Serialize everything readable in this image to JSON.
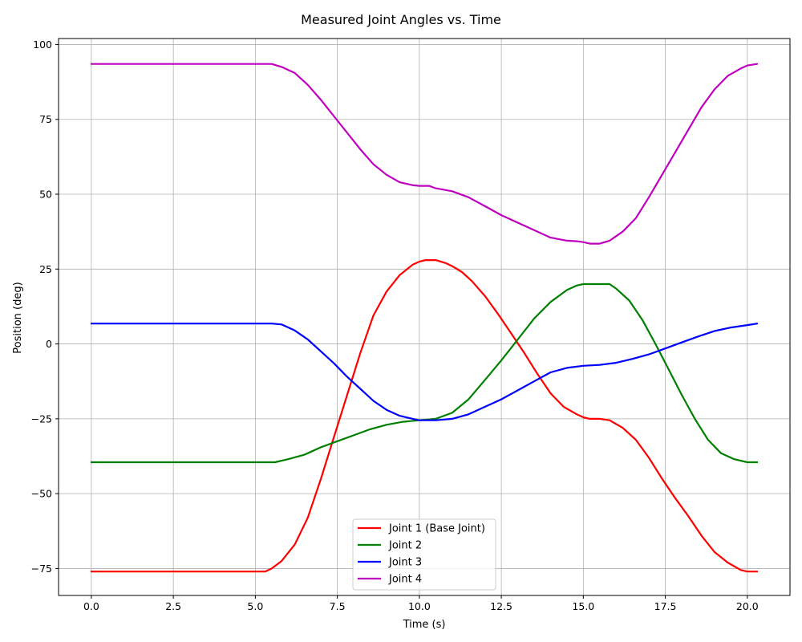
{
  "chart_data": {
    "type": "line",
    "title": "Measured Joint Angles vs. Time",
    "xlabel": "Time (s)",
    "ylabel": "Position (deg)",
    "xlim": [
      -1.0,
      21.3
    ],
    "ylim": [
      -84,
      102
    ],
    "xticks": [
      0.0,
      2.5,
      5.0,
      7.5,
      10.0,
      12.5,
      15.0,
      17.5,
      20.0
    ],
    "xtick_labels": [
      "0.0",
      "2.5",
      "5.0",
      "7.5",
      "10.0",
      "12.5",
      "15.0",
      "17.5",
      "20.0"
    ],
    "yticks": [
      -75,
      -50,
      -25,
      0,
      25,
      50,
      75,
      100
    ],
    "ytick_labels": [
      "−75",
      "−50",
      "−25",
      "0",
      "25",
      "50",
      "75",
      "100"
    ],
    "grid": true,
    "legend_position": "bottom-center",
    "series": [
      {
        "name": "Joint 1 (Base Joint)",
        "color": "#ff0000",
        "x": [
          0,
          1,
          2,
          3,
          4,
          5,
          5.3,
          5.5,
          5.8,
          6.2,
          6.6,
          7.0,
          7.4,
          7.8,
          8.2,
          8.6,
          9.0,
          9.4,
          9.8,
          10.0,
          10.2,
          10.5,
          10.8,
          11.0,
          11.3,
          11.6,
          12.0,
          12.4,
          12.8,
          13.2,
          13.6,
          14.0,
          14.4,
          14.8,
          15.0,
          15.2,
          15.5,
          15.8,
          16.2,
          16.6,
          17.0,
          17.4,
          17.8,
          18.2,
          18.6,
          19.0,
          19.4,
          19.8,
          20.0,
          20.3
        ],
        "y": [
          -76,
          -76,
          -76,
          -76,
          -76,
          -76,
          -76,
          -75,
          -72.5,
          -67,
          -58,
          -45,
          -31,
          -17,
          -3,
          9.5,
          17.5,
          23,
          26.5,
          27.5,
          28,
          28,
          27,
          26,
          24,
          21,
          16,
          10,
          3.5,
          -3,
          -10,
          -16.5,
          -21,
          -23.5,
          -24.5,
          -25,
          -25,
          -25.5,
          -28,
          -32,
          -38,
          -45,
          -51.5,
          -57.5,
          -64,
          -69.5,
          -73,
          -75.5,
          -76,
          -76
        ]
      },
      {
        "name": "Joint 2",
        "color": "#008000",
        "x": [
          0,
          1,
          2,
          3,
          4,
          5,
          5.6,
          6.0,
          6.5,
          7.0,
          7.5,
          8.0,
          8.5,
          9.0,
          9.5,
          10.0,
          10.5,
          11.0,
          11.5,
          12.0,
          12.5,
          13.0,
          13.5,
          14.0,
          14.5,
          14.8,
          15.0,
          15.5,
          15.8,
          16.0,
          16.4,
          16.8,
          17.2,
          17.6,
          18.0,
          18.4,
          18.8,
          19.2,
          19.6,
          20.0,
          20.3
        ],
        "y": [
          -39.5,
          -39.5,
          -39.5,
          -39.5,
          -39.5,
          -39.5,
          -39.5,
          -38.5,
          -37,
          -34.5,
          -32.5,
          -30.5,
          -28.5,
          -27,
          -26,
          -25.5,
          -25,
          -23,
          -18.5,
          -12,
          -5.5,
          1.5,
          8.5,
          14,
          18,
          19.5,
          20,
          20,
          20,
          18.5,
          14.5,
          8,
          0,
          -8.5,
          -17,
          -25,
          -32,
          -36.5,
          -38.5,
          -39.5,
          -39.5
        ]
      },
      {
        "name": "Joint 3",
        "color": "#0000ff",
        "x": [
          0,
          1,
          2,
          3,
          4,
          5,
          5.5,
          5.8,
          6.2,
          6.6,
          7.0,
          7.4,
          7.8,
          8.2,
          8.6,
          9.0,
          9.4,
          9.8,
          10.0,
          10.5,
          11.0,
          11.5,
          12.0,
          12.5,
          13.0,
          13.5,
          14.0,
          14.5,
          15.0,
          15.5,
          16.0,
          16.5,
          17.0,
          17.5,
          18.0,
          18.5,
          19.0,
          19.5,
          20.0,
          20.3
        ],
        "y": [
          6.8,
          6.8,
          6.8,
          6.8,
          6.8,
          6.8,
          6.8,
          6.5,
          4.5,
          1.5,
          -2.5,
          -6.5,
          -11,
          -15,
          -19,
          -22,
          -24,
          -25,
          -25.5,
          -25.5,
          -25,
          -23.5,
          -21,
          -18.5,
          -15.5,
          -12.5,
          -9.5,
          -8,
          -7.3,
          -7,
          -6.3,
          -5,
          -3.5,
          -1.5,
          0.5,
          2.5,
          4.3,
          5.5,
          6.3,
          6.8
        ]
      },
      {
        "name": "Joint 4",
        "color": "#bf00bf",
        "x": [
          0,
          1,
          2,
          3,
          4,
          5,
          5.5,
          5.8,
          6.2,
          6.6,
          7.0,
          7.4,
          7.8,
          8.2,
          8.6,
          9.0,
          9.4,
          9.8,
          10.0,
          10.3,
          10.5,
          11.0,
          11.5,
          12.0,
          12.5,
          13.0,
          13.5,
          14.0,
          14.5,
          14.8,
          15.0,
          15.2,
          15.5,
          15.8,
          16.2,
          16.6,
          17.0,
          17.4,
          17.8,
          18.2,
          18.6,
          19.0,
          19.4,
          19.8,
          20.0,
          20.3
        ],
        "y": [
          93.5,
          93.5,
          93.5,
          93.5,
          93.5,
          93.5,
          93.5,
          92.5,
          90.5,
          86.5,
          81.5,
          76,
          70.5,
          65,
          60,
          56.5,
          54,
          53,
          52.8,
          52.8,
          52,
          51,
          49,
          46,
          43,
          40.5,
          38,
          35.5,
          34.5,
          34.3,
          34,
          33.5,
          33.5,
          34.5,
          37.5,
          42,
          49,
          56.5,
          64,
          71.5,
          79,
          85,
          89.5,
          92,
          93,
          93.5
        ]
      }
    ]
  }
}
